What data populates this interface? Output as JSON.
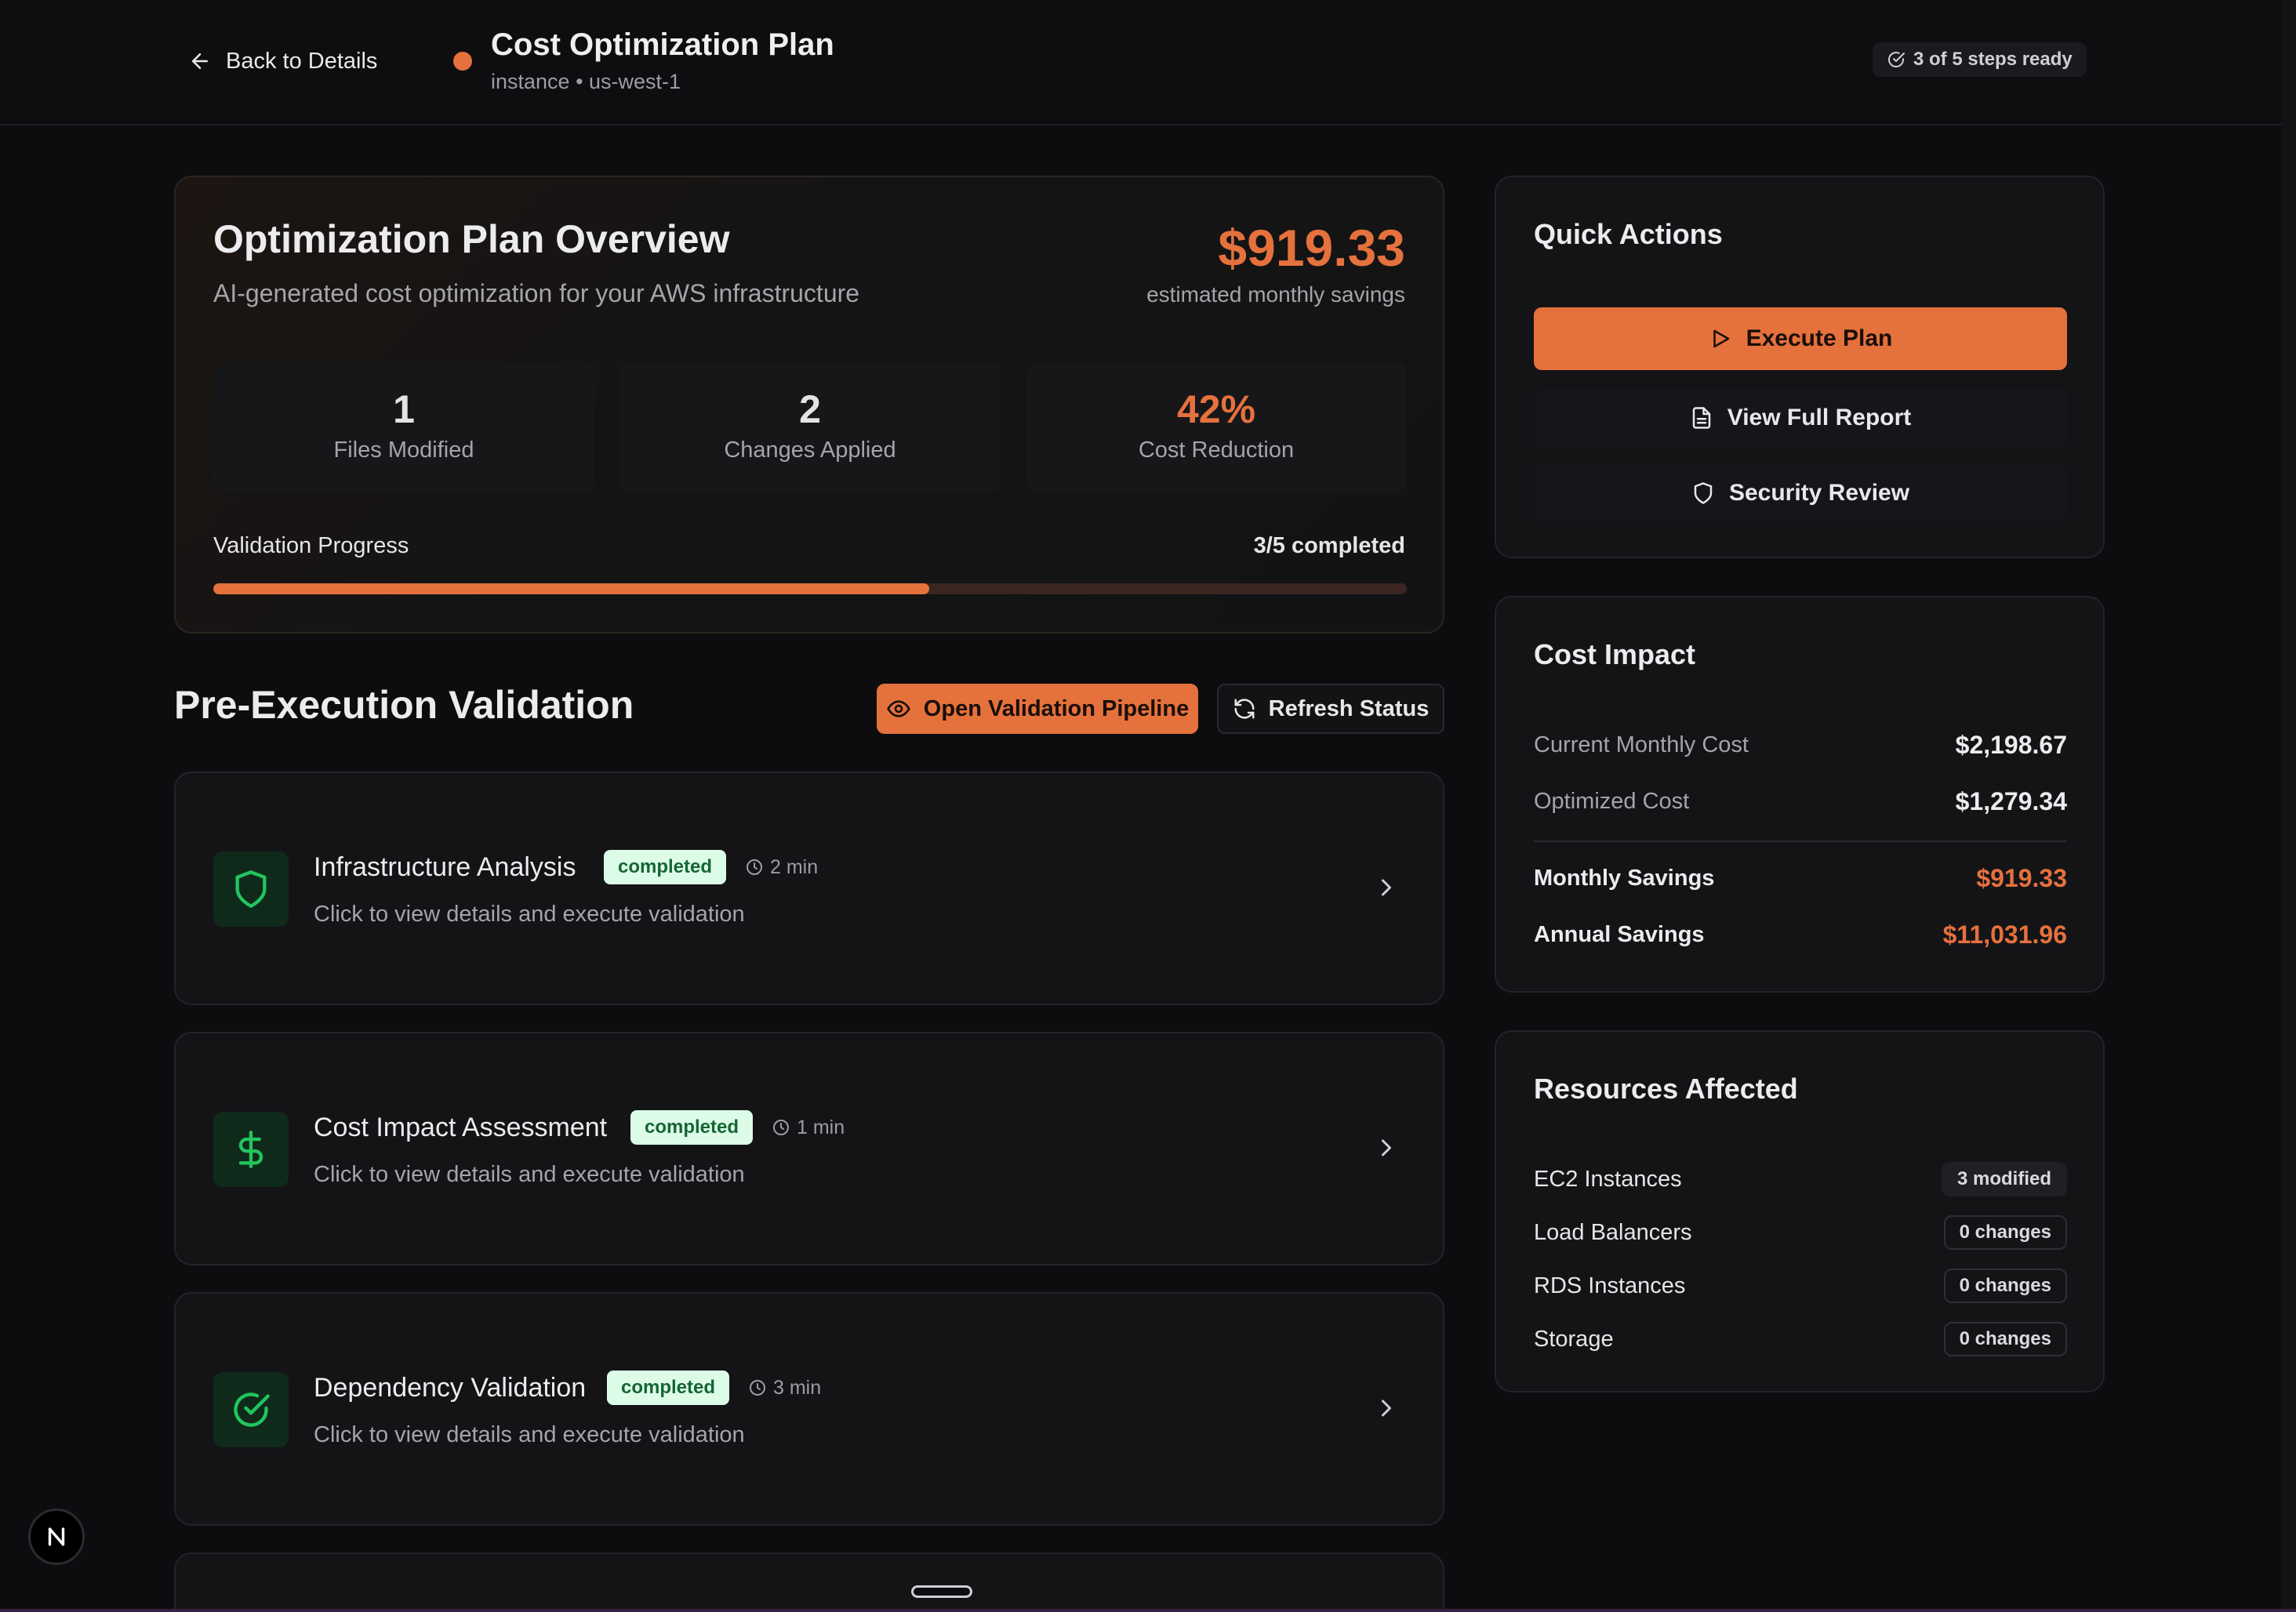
{
  "header": {
    "back_label": "Back to Details",
    "title": "Cost Optimization Plan",
    "subtitle": "instance • us-west-1",
    "steps_badge": "3 of 5 steps ready",
    "status_dot_color": "#e5713d"
  },
  "overview": {
    "title": "Optimization Plan Overview",
    "subtitle": "AI-generated cost optimization for your AWS infrastructure",
    "savings_amount": "$919.33",
    "savings_label": "estimated monthly savings",
    "stats": [
      {
        "value": "1",
        "label": "Files Modified"
      },
      {
        "value": "2",
        "label": "Changes Applied"
      },
      {
        "value": "42%",
        "label": "Cost Reduction"
      }
    ],
    "progress_label": "Validation Progress",
    "progress_count": "3/5 completed",
    "progress_fraction": 0.6
  },
  "validation": {
    "title": "Pre-Execution Validation",
    "open_pipeline_label": "Open Validation Pipeline",
    "refresh_label": "Refresh Status",
    "items": [
      {
        "title": "Infrastructure Analysis",
        "status": "completed",
        "time": "2 min",
        "description": "Click to view details and execute validation",
        "icon": "shield-icon"
      },
      {
        "title": "Cost Impact Assessment",
        "status": "completed",
        "time": "1 min",
        "description": "Click to view details and execute validation",
        "icon": "dollar-icon"
      },
      {
        "title": "Dependency Validation",
        "status": "completed",
        "time": "3 min",
        "description": "Click to view details and execute validation",
        "icon": "check-circle-icon"
      }
    ]
  },
  "quick_actions": {
    "title": "Quick Actions",
    "execute_label": "Execute Plan",
    "report_label": "View Full Report",
    "security_label": "Security Review"
  },
  "cost_impact": {
    "title": "Cost Impact",
    "rows": [
      {
        "label": "Current Monthly Cost",
        "value": "$2,198.67"
      },
      {
        "label": "Optimized Cost",
        "value": "$1,279.34"
      },
      {
        "label": "Monthly Savings",
        "value": "$919.33"
      },
      {
        "label": "Annual Savings",
        "value": "$11,031.96"
      }
    ]
  },
  "resources": {
    "title": "Resources Affected",
    "rows": [
      {
        "label": "EC2 Instances",
        "badge": "3 modified"
      },
      {
        "label": "Load Balancers",
        "badge": "0 changes"
      },
      {
        "label": "RDS Instances",
        "badge": "0 changes"
      },
      {
        "label": "Storage",
        "badge": "0 changes"
      }
    ]
  },
  "colors": {
    "accent": "#e5713d",
    "success_bg": "#dcfce7",
    "success_text": "#166534",
    "background": "#0d0d0f"
  }
}
